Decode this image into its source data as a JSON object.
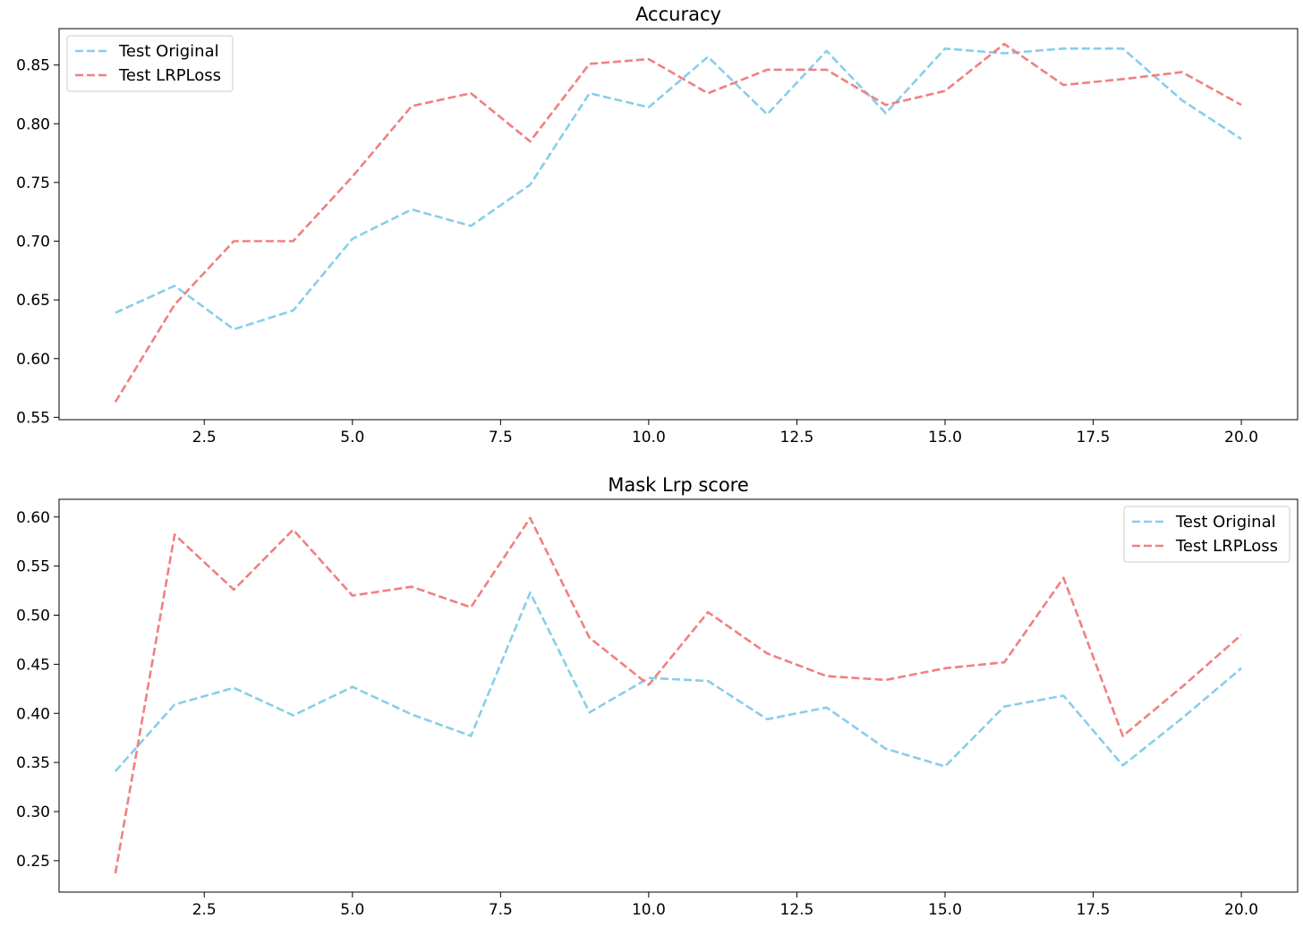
{
  "colors": {
    "test_original": "#87ceeb",
    "test_lrploss": "#f08080"
  },
  "chart_data": [
    {
      "type": "line",
      "title": "Accuracy",
      "xlabel": "",
      "ylabel": "",
      "grid": false,
      "legend_position": "top-left",
      "xlim": [
        0.05,
        20.95
      ],
      "ylim": [
        0.548,
        0.881
      ],
      "x_ticks": [
        "2.5",
        "5.0",
        "7.5",
        "10.0",
        "12.5",
        "15.0",
        "17.5",
        "20.0"
      ],
      "y_ticks": [
        "0.55",
        "0.60",
        "0.65",
        "0.70",
        "0.75",
        "0.80",
        "0.85"
      ],
      "x": [
        1,
        2,
        3,
        4,
        5,
        6,
        7,
        8,
        9,
        10,
        11,
        12,
        13,
        14,
        15,
        16,
        17,
        18,
        19,
        20
      ],
      "series": [
        {
          "name": "Test Original",
          "style": "dashed",
          "values": [
            0.639,
            0.662,
            0.625,
            0.641,
            0.702,
            0.727,
            0.713,
            0.748,
            0.826,
            0.814,
            0.857,
            0.808,
            0.862,
            0.809,
            0.864,
            0.86,
            0.864,
            0.864,
            0.82,
            0.787
          ]
        },
        {
          "name": "Test LRPLoss",
          "style": "dashed",
          "values": [
            0.563,
            0.646,
            0.7,
            0.7,
            0.755,
            0.815,
            0.826,
            0.785,
            0.851,
            0.855,
            0.826,
            0.846,
            0.846,
            0.816,
            0.828,
            0.868,
            0.833,
            0.838,
            0.844,
            0.816
          ]
        }
      ]
    },
    {
      "type": "line",
      "title": "Mask Lrp score",
      "xlabel": "",
      "ylabel": "",
      "grid": false,
      "legend_position": "top-right",
      "xlim": [
        0.05,
        20.95
      ],
      "ylim": [
        0.218,
        0.618
      ],
      "x_ticks": [
        "2.5",
        "5.0",
        "7.5",
        "10.0",
        "12.5",
        "15.0",
        "17.5",
        "20.0"
      ],
      "y_ticks": [
        "0.25",
        "0.30",
        "0.35",
        "0.40",
        "0.45",
        "0.50",
        "0.55",
        "0.60"
      ],
      "x": [
        1,
        2,
        3,
        4,
        5,
        6,
        7,
        8,
        9,
        10,
        11,
        12,
        13,
        14,
        15,
        16,
        17,
        18,
        19,
        20
      ],
      "series": [
        {
          "name": "Test Original",
          "style": "dashed",
          "values": [
            0.341,
            0.409,
            0.426,
            0.398,
            0.427,
            0.399,
            0.377,
            0.523,
            0.401,
            0.436,
            0.433,
            0.394,
            0.406,
            0.364,
            0.346,
            0.407,
            0.418,
            0.347,
            0.395,
            0.446
          ]
        },
        {
          "name": "Test LRPLoss",
          "style": "dashed",
          "values": [
            0.237,
            0.582,
            0.526,
            0.587,
            0.52,
            0.529,
            0.508,
            0.599,
            0.477,
            0.429,
            0.503,
            0.461,
            0.438,
            0.434,
            0.446,
            0.452,
            0.538,
            0.377,
            0.427,
            0.48
          ]
        }
      ]
    }
  ]
}
